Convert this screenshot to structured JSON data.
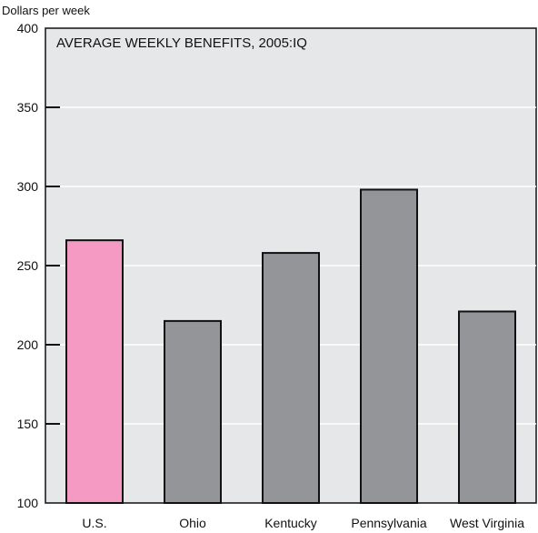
{
  "chart_data": {
    "type": "bar",
    "title": "AVERAGE WEEKLY BENEFITS, 2005:IQ",
    "ylabel": "Dollars per week",
    "xlabel": "",
    "categories": [
      "U.S.",
      "Ohio",
      "Kentucky",
      "Pennsylvania",
      "West Virginia"
    ],
    "values": [
      266,
      215,
      258,
      298,
      221
    ],
    "ylim": [
      100,
      400
    ],
    "yticks": [
      100,
      150,
      200,
      250,
      300,
      350,
      400
    ],
    "grid": "horizontal",
    "colors": {
      "highlight": "#f59ac3",
      "bar": "#939598",
      "plot_background": "#e6e7e8",
      "gridline": "#ffffff"
    },
    "highlight_index": 0
  }
}
